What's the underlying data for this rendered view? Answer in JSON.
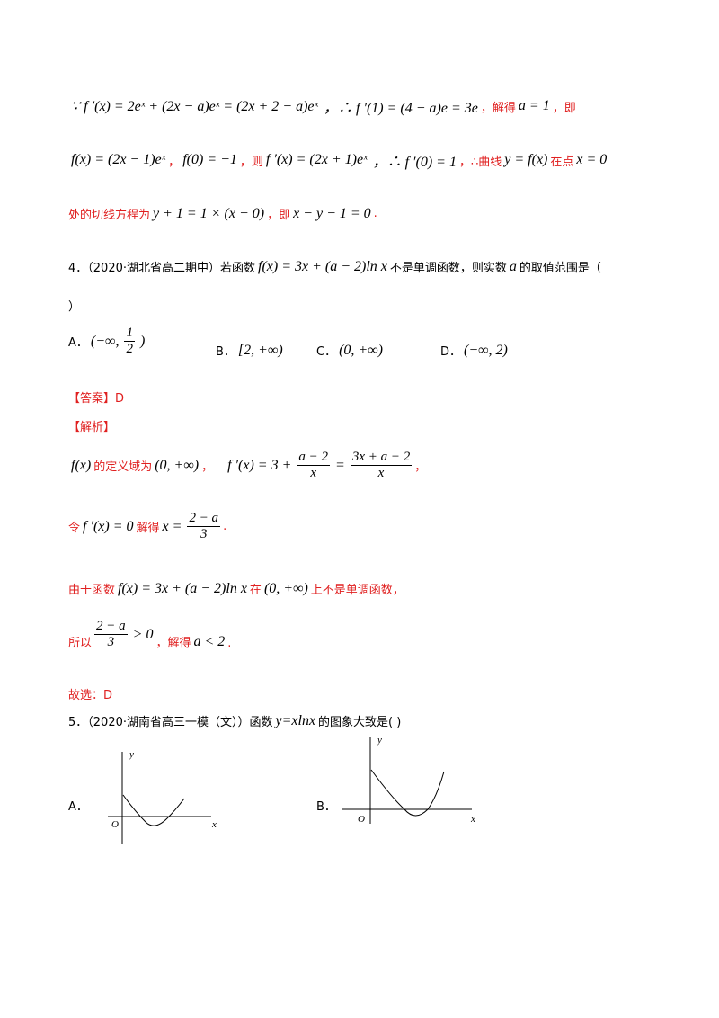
{
  "solution_prev": {
    "line1": [
      "∵ f ′(x) = 2eˣ + (2x − a)eˣ = (2x + 2 − a)eˣ",
      "，∴ f ′(1) = (4 − a)e = 3e",
      "，解得",
      "a = 1",
      "，即"
    ],
    "line2": [
      "f(x) = (2x − 1)eˣ",
      "，",
      "f(0) = −1",
      "，则",
      "f ′(x) = (2x + 1)eˣ",
      "，∴ f ′(0) = 1",
      "，∴曲线",
      "y = f(x)",
      "在点",
      "x = 0"
    ],
    "line3": [
      "处的切线方程为",
      "y + 1 = 1 × (x − 0)",
      "，即",
      "x − y − 1 = 0",
      "."
    ]
  },
  "question4": {
    "stem": [
      "4．（2020·湖北省高二期中）若函数",
      "f(x) = 3x + (a − 2)ln x",
      "不是单调函数，则实数",
      "a",
      "的取值范围是（",
      "）"
    ],
    "options": [
      {
        "label": "A．",
        "parts": [
          "(−∞,",
          "1",
          "2",
          ")"
        ]
      },
      {
        "label": "B．",
        "parts": [
          "[2, +∞)"
        ]
      },
      {
        "label": "C．",
        "parts": [
          "(0, +∞)"
        ]
      },
      {
        "label": "D．",
        "parts": [
          "(−∞, 2)"
        ]
      }
    ],
    "answer": "【答案】D",
    "analysis_title": "【解析】",
    "analysis": {
      "line1": [
        "f(x)",
        "的定义域为",
        "(0, +∞)",
        "，",
        "f ′(x) = 3 +",
        "a − 2",
        "x",
        "=",
        "3x + a − 2",
        "x",
        "，"
      ],
      "line2": [
        "令",
        "f ′(x) = 0",
        "解得",
        "x =",
        "2 − a",
        "3",
        "."
      ],
      "line3": [
        "由于函数",
        "f(x) = 3x + (a − 2)ln x",
        "在",
        "(0, +∞)",
        "上不是单调函数，"
      ],
      "line4": [
        "所以",
        "2 − a",
        "3",
        "> 0",
        "，解得",
        "a < 2",
        "."
      ],
      "line5": "故选：D"
    }
  },
  "question5": {
    "stem": [
      "5．（2020·湖南省高三一模（文））函数",
      "y=xlnx",
      "的图象大致是(    )"
    ],
    "options": [
      {
        "label": "A．",
        "y_axis": "y",
        "x_axis": "x",
        "origin": "O"
      },
      {
        "label": "B．",
        "y_axis": "y",
        "x_axis": "x",
        "origin": "O"
      }
    ]
  }
}
